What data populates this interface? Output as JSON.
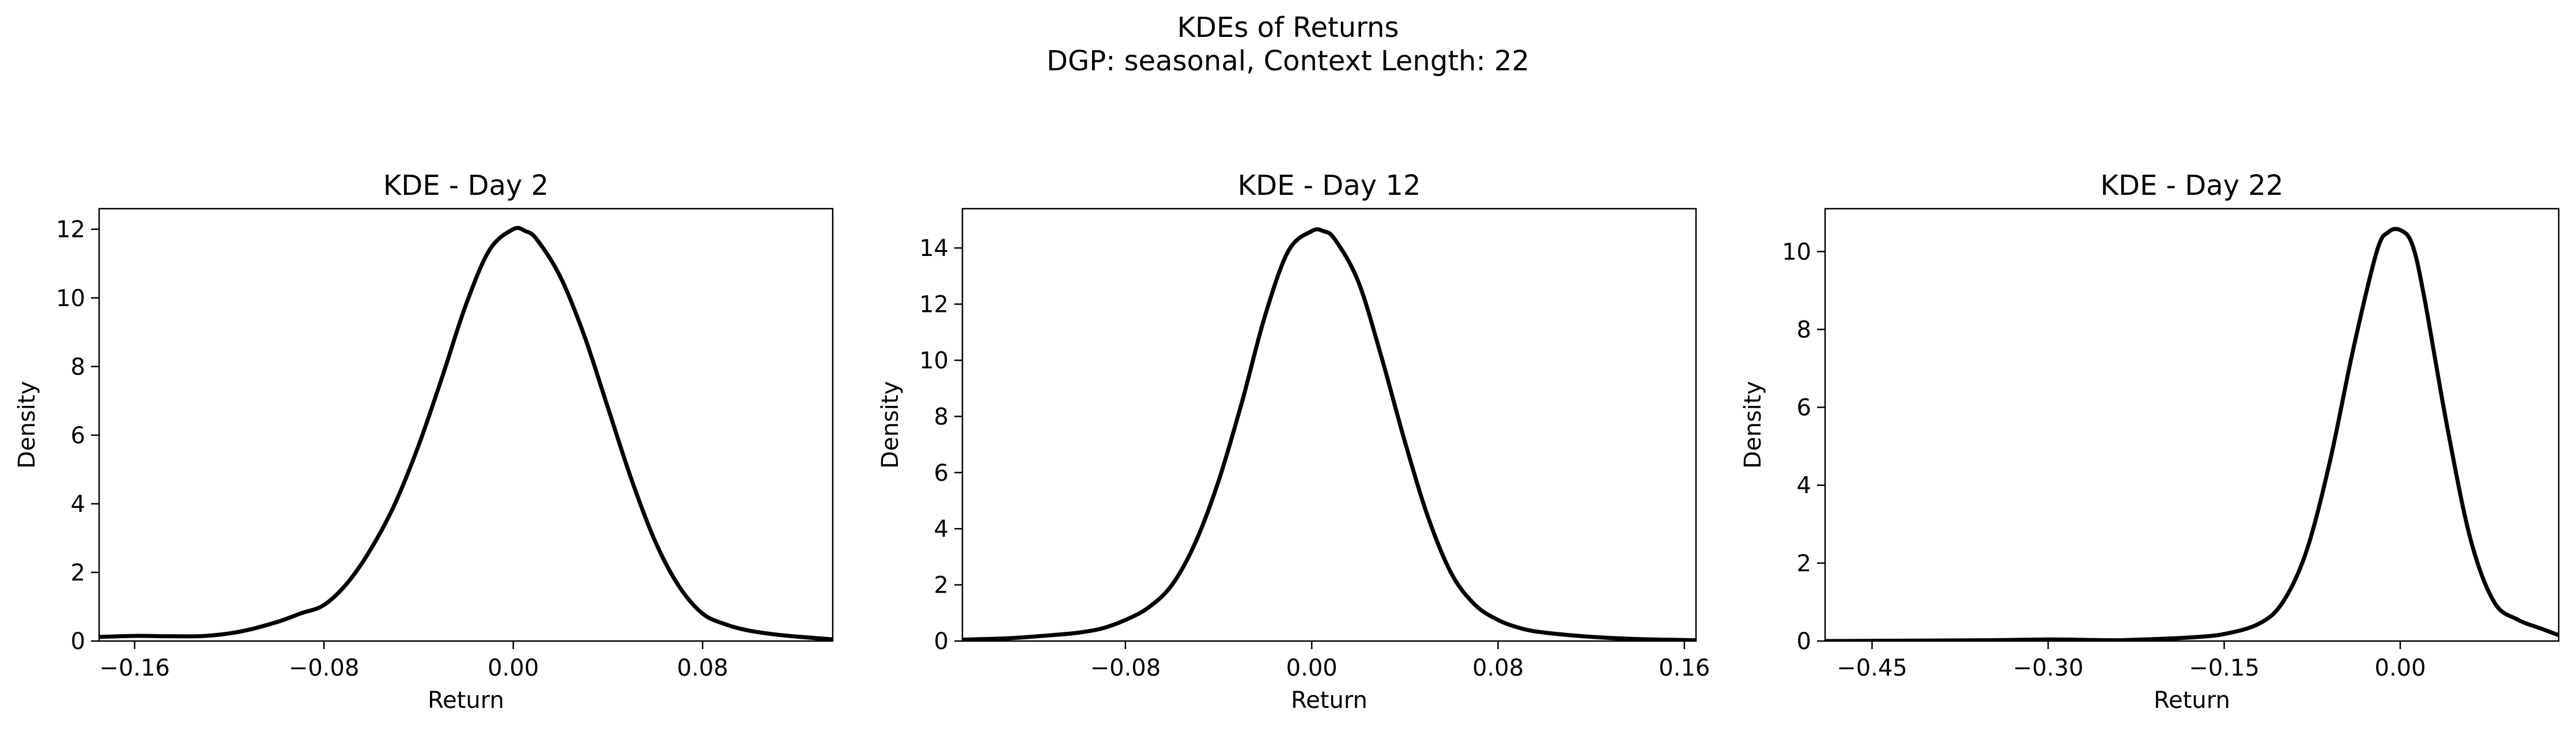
{
  "figure": {
    "title_line1": "KDEs of Returns",
    "title_line2": "DGP: seasonal, Context Length: 22"
  },
  "chart_data": [
    {
      "type": "line",
      "title": "KDE - Day 2",
      "xlabel": "Return",
      "ylabel": "Density",
      "xlim": [
        -0.175,
        0.135
      ],
      "ylim": [
        0,
        12.6
      ],
      "xticks": [
        -0.16,
        -0.08,
        0.0,
        0.08
      ],
      "xtick_labels": [
        "−0.16",
        "−0.08",
        "0.00",
        "0.08"
      ],
      "yticks": [
        0,
        2,
        4,
        6,
        8,
        10,
        12
      ],
      "ytick_labels": [
        "0",
        "2",
        "4",
        "6",
        "8",
        "10",
        "12"
      ],
      "grid": false,
      "series": [
        {
          "color": "#000000",
          "x": [
            -0.175,
            -0.16,
            -0.145,
            -0.13,
            -0.115,
            -0.1,
            -0.09,
            -0.08,
            -0.07,
            -0.06,
            -0.05,
            -0.04,
            -0.03,
            -0.02,
            -0.01,
            0.0,
            0.005,
            0.01,
            0.02,
            0.03,
            0.04,
            0.05,
            0.06,
            0.07,
            0.08,
            0.09,
            0.1,
            0.115,
            0.135
          ],
          "y": [
            0.12,
            0.15,
            0.14,
            0.15,
            0.28,
            0.55,
            0.8,
            1.05,
            1.7,
            2.7,
            4.0,
            5.7,
            7.7,
            9.8,
            11.4,
            12.0,
            11.95,
            11.7,
            10.6,
            8.9,
            6.8,
            4.7,
            2.9,
            1.6,
            0.8,
            0.48,
            0.3,
            0.16,
            0.05
          ]
        }
      ]
    },
    {
      "type": "line",
      "title": "KDE - Day 12",
      "xlabel": "Return",
      "ylabel": "Density",
      "xlim": [
        -0.15,
        0.165
      ],
      "ylim": [
        0,
        15.4
      ],
      "xticks": [
        -0.08,
        0.0,
        0.08,
        0.16
      ],
      "xtick_labels": [
        "−0.08",
        "0.00",
        "0.08",
        "0.16"
      ],
      "yticks": [
        0,
        2,
        4,
        6,
        8,
        10,
        12,
        14
      ],
      "ytick_labels": [
        "0",
        "2",
        "4",
        "6",
        "8",
        "10",
        "12",
        "14"
      ],
      "grid": false,
      "series": [
        {
          "color": "#000000",
          "x": [
            -0.15,
            -0.13,
            -0.11,
            -0.1,
            -0.09,
            -0.08,
            -0.07,
            -0.06,
            -0.05,
            -0.04,
            -0.03,
            -0.02,
            -0.01,
            0.0,
            0.005,
            0.01,
            0.02,
            0.03,
            0.04,
            0.05,
            0.06,
            0.07,
            0.08,
            0.09,
            0.1,
            0.12,
            0.14,
            0.165
          ],
          "y": [
            0.05,
            0.1,
            0.22,
            0.3,
            0.45,
            0.75,
            1.2,
            2.0,
            3.5,
            5.7,
            8.5,
            11.6,
            13.9,
            14.6,
            14.6,
            14.3,
            12.8,
            10.1,
            7.1,
            4.4,
            2.4,
            1.3,
            0.75,
            0.45,
            0.3,
            0.15,
            0.07,
            0.03
          ]
        }
      ]
    },
    {
      "type": "line",
      "title": "KDE - Day 22",
      "xlabel": "Return",
      "ylabel": "Density",
      "xlim": [
        -0.49,
        0.135
      ],
      "ylim": [
        0,
        11.1
      ],
      "xticks": [
        -0.45,
        -0.3,
        -0.15,
        0.0
      ],
      "xtick_labels": [
        "−0.45",
        "−0.30",
        "−0.15",
        "0.00"
      ],
      "yticks": [
        0,
        2,
        4,
        6,
        8,
        10
      ],
      "ytick_labels": [
        "0",
        "2",
        "4",
        "6",
        "8",
        "10"
      ],
      "grid": false,
      "series": [
        {
          "color": "#000000",
          "x": [
            -0.49,
            -0.42,
            -0.35,
            -0.3,
            -0.27,
            -0.24,
            -0.21,
            -0.18,
            -0.15,
            -0.12,
            -0.1,
            -0.08,
            -0.06,
            -0.04,
            -0.02,
            -0.01,
            0.0,
            0.01,
            0.02,
            0.04,
            0.06,
            0.08,
            0.1,
            0.12,
            0.135
          ],
          "y": [
            0.0,
            0.01,
            0.02,
            0.04,
            0.03,
            0.02,
            0.05,
            0.09,
            0.18,
            0.45,
            1.0,
            2.3,
            4.6,
            7.5,
            10.0,
            10.5,
            10.55,
            10.2,
            8.9,
            5.5,
            2.6,
            1.0,
            0.55,
            0.32,
            0.15
          ]
        }
      ]
    }
  ]
}
